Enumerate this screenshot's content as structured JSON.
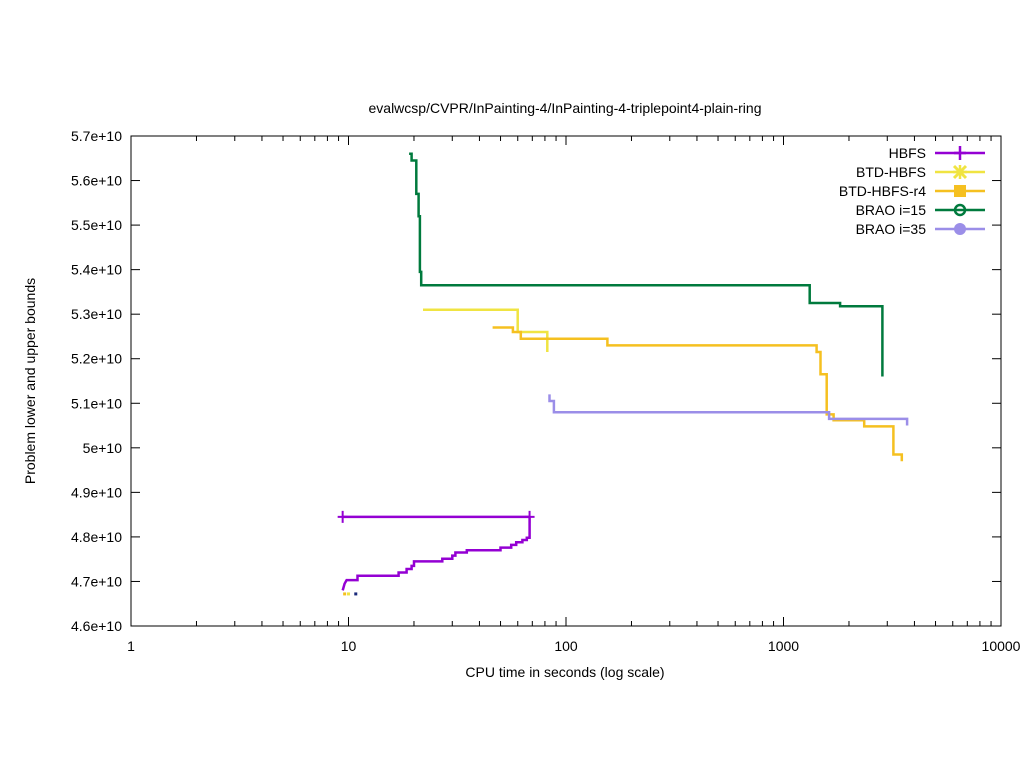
{
  "chart_data": {
    "type": "line",
    "title": "evalwcsp/CVPR/InPainting-4/InPainting-4-triplepoint4-plain-ring",
    "xlabel": "CPU time in seconds (log scale)",
    "ylabel": "Problem lower and upper bounds",
    "xscale": "log",
    "xlim": [
      1,
      10000
    ],
    "ylim": [
      46000000000,
      57000000000
    ],
    "x_ticks": [
      1,
      10,
      100,
      1000,
      10000
    ],
    "x_tick_labels": [
      "1",
      "10",
      "100",
      "1000",
      "10000"
    ],
    "y_ticks": [
      46000000000,
      47000000000,
      48000000000,
      49000000000,
      50000000000,
      51000000000,
      52000000000,
      53000000000,
      54000000000,
      55000000000,
      56000000000,
      57000000000
    ],
    "y_tick_labels": [
      "4.6e+10",
      "4.7e+10",
      "4.8e+10",
      "4.9e+10",
      "5e+10",
      "5.1e+10",
      "5.2e+10",
      "5.3e+10",
      "5.4e+10",
      "5.5e+10",
      "5.6e+10",
      "5.7e+10"
    ],
    "grid": false,
    "legend_position": "top-right",
    "series": [
      {
        "name": "HBFS",
        "color": "#9400d3",
        "marker": "plus",
        "points": [
          [
            9.4,
            48450000000
          ],
          [
            68,
            48450000000
          ]
        ],
        "lower_points": [
          [
            9.4,
            46800000000
          ],
          [
            9.6,
            46950000000
          ],
          [
            9.8,
            47030000000
          ],
          [
            11,
            47030000000
          ],
          [
            11,
            47130000000
          ],
          [
            17,
            47130000000
          ],
          [
            17,
            47200000000
          ],
          [
            18.5,
            47200000000
          ],
          [
            18.5,
            47280000000
          ],
          [
            19.5,
            47280000000
          ],
          [
            19.5,
            47350000000
          ],
          [
            20,
            47350000000
          ],
          [
            20,
            47450000000
          ],
          [
            27,
            47450000000
          ],
          [
            27,
            47510000000
          ],
          [
            30,
            47510000000
          ],
          [
            30,
            47580000000
          ],
          [
            31,
            47580000000
          ],
          [
            31,
            47650000000
          ],
          [
            35,
            47650000000
          ],
          [
            35,
            47700000000
          ],
          [
            50,
            47700000000
          ],
          [
            50,
            47760000000
          ],
          [
            56,
            47760000000
          ],
          [
            56,
            47820000000
          ],
          [
            59,
            47820000000
          ],
          [
            59,
            47880000000
          ],
          [
            63,
            47880000000
          ],
          [
            63,
            47930000000
          ],
          [
            66,
            47930000000
          ],
          [
            66,
            47980000000
          ],
          [
            68,
            47980000000
          ],
          [
            68,
            48450000000
          ]
        ]
      },
      {
        "name": "BTD-HBFS",
        "color": "#f0e442",
        "marker": "x",
        "points": [
          [
            22,
            53100000000
          ],
          [
            60,
            53100000000
          ],
          [
            60,
            52600000000
          ],
          [
            82,
            52600000000
          ],
          [
            82,
            52150000000
          ]
        ]
      },
      {
        "name": "BTD-HBFS-r4",
        "color": "#f5c020",
        "marker": "square",
        "points": [
          [
            46,
            52700000000
          ],
          [
            57,
            52700000000
          ],
          [
            57,
            52600000000
          ],
          [
            62,
            52600000000
          ],
          [
            62,
            52450000000
          ],
          [
            155,
            52450000000
          ],
          [
            155,
            52300000000
          ],
          [
            1420,
            52300000000
          ],
          [
            1420,
            52150000000
          ],
          [
            1480,
            52150000000
          ],
          [
            1480,
            51650000000
          ],
          [
            1580,
            51650000000
          ],
          [
            1580,
            50750000000
          ],
          [
            1700,
            50750000000
          ],
          [
            1700,
            50620000000
          ],
          [
            2350,
            50620000000
          ],
          [
            2350,
            50480000000
          ],
          [
            3200,
            50480000000
          ],
          [
            3200,
            49850000000
          ],
          [
            3500,
            49850000000
          ],
          [
            3500,
            49700000000
          ]
        ]
      },
      {
        "name": "BRAO i=15",
        "color": "#007a3d",
        "marker": "circle",
        "points": [
          [
            19,
            56600000000
          ],
          [
            19.5,
            56600000000
          ],
          [
            19.5,
            56450000000
          ],
          [
            20.5,
            56450000000
          ],
          [
            20.5,
            55700000000
          ],
          [
            21,
            55700000000
          ],
          [
            21,
            55200000000
          ],
          [
            21.3,
            55200000000
          ],
          [
            21.3,
            53950000000
          ],
          [
            21.6,
            53950000000
          ],
          [
            21.6,
            53650000000
          ],
          [
            1320,
            53650000000
          ],
          [
            1320,
            53250000000
          ],
          [
            1820,
            53250000000
          ],
          [
            1820,
            53180000000
          ],
          [
            2850,
            53180000000
          ],
          [
            2850,
            51600000000
          ]
        ]
      },
      {
        "name": "BRAO i=35",
        "color": "#9b8ee8",
        "marker": "dot",
        "points": [
          [
            84,
            51200000000
          ],
          [
            84,
            51050000000
          ],
          [
            88,
            51050000000
          ],
          [
            88,
            50800000000
          ],
          [
            1620,
            50800000000
          ],
          [
            1620,
            50650000000
          ],
          [
            3700,
            50650000000
          ],
          [
            3700,
            50500000000
          ]
        ]
      }
    ],
    "extra_marks": [
      {
        "color": "#f5c020",
        "x": 9.6,
        "y": 46720000000
      },
      {
        "color": "#f0e442",
        "x": 10.0,
        "y": 46720000000
      },
      {
        "color": "#1a2a7a",
        "x": 10.8,
        "y": 46720000000
      }
    ]
  }
}
